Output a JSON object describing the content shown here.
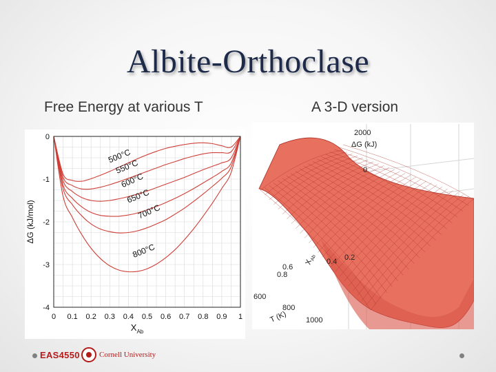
{
  "slide": {
    "title": "Albite-Orthoclase",
    "left_caption": "Free Energy at various T",
    "right_caption": "A 3-D version"
  },
  "footer": {
    "course_code": "EAS4550",
    "institution": "Cornell University"
  },
  "colors": {
    "curve": "#cf3f38",
    "surface_fill": "#e8705f",
    "surface_line": "#a92e25",
    "title": "#1d2a4a",
    "brand": "#b31b1b"
  },
  "chart_data": [
    {
      "type": "line",
      "ylabel": "ΔG (kJ/mol)",
      "xlabel": "X",
      "xlabel_subscript": "Ab",
      "xlim": [
        0,
        1
      ],
      "ylim": [
        -4,
        0
      ],
      "x_ticks": [
        "0",
        "0.1",
        "0.2",
        "0.3",
        "0.4",
        "0.5",
        "0.6",
        "0.7",
        "0.8",
        "0.9",
        "1"
      ],
      "y_ticks": [
        "0",
        "-1",
        "-2",
        "-3",
        "-4"
      ],
      "grid": true,
      "x": [
        0,
        0.05,
        0.1,
        0.15,
        0.2,
        0.25,
        0.3,
        0.35,
        0.4,
        0.45,
        0.5,
        0.55,
        0.6,
        0.65,
        0.7,
        0.75,
        0.8,
        0.85,
        0.9,
        0.95,
        1
      ],
      "series": [
        {
          "name": "500°C",
          "values": [
            0,
            -0.88,
            -1.03,
            -1.05,
            -0.99,
            -0.91,
            -0.82,
            -0.72,
            -0.62,
            -0.52,
            -0.43,
            -0.35,
            -0.28,
            -0.23,
            -0.19,
            -0.16,
            -0.15,
            -0.17,
            -0.22,
            -0.25,
            0
          ]
        },
        {
          "name": "550°C",
          "values": [
            0,
            -0.95,
            -1.15,
            -1.23,
            -1.23,
            -1.19,
            -1.13,
            -1.06,
            -0.98,
            -0.9,
            -0.82,
            -0.74,
            -0.66,
            -0.59,
            -0.52,
            -0.46,
            -0.41,
            -0.38,
            -0.38,
            -0.36,
            0
          ]
        },
        {
          "name": "600°C",
          "values": [
            0,
            -1.03,
            -1.29,
            -1.43,
            -1.5,
            -1.52,
            -1.5,
            -1.46,
            -1.41,
            -1.35,
            -1.28,
            -1.2,
            -1.12,
            -1.04,
            -0.96,
            -0.87,
            -0.78,
            -0.7,
            -0.62,
            -0.51,
            0
          ]
        },
        {
          "name": "650°C",
          "values": [
            0,
            -1.13,
            -1.45,
            -1.65,
            -1.78,
            -1.85,
            -1.87,
            -1.87,
            -1.84,
            -1.79,
            -1.72,
            -1.64,
            -1.55,
            -1.45,
            -1.34,
            -1.22,
            -1.09,
            -0.96,
            -0.82,
            -0.63,
            0
          ]
        },
        {
          "name": "700°C",
          "values": [
            0,
            -1.22,
            -1.6,
            -1.86,
            -2.05,
            -2.17,
            -2.23,
            -2.26,
            -2.25,
            -2.21,
            -2.14,
            -2.05,
            -1.95,
            -1.82,
            -1.68,
            -1.52,
            -1.35,
            -1.17,
            -0.98,
            -0.72,
            0
          ]
        },
        {
          "name": "800°C",
          "values": [
            0,
            -1.4,
            -1.9,
            -2.3,
            -2.62,
            -2.86,
            -3.03,
            -3.13,
            -3.17,
            -3.16,
            -3.1,
            -2.99,
            -2.84,
            -2.65,
            -2.42,
            -2.16,
            -1.87,
            -1.56,
            -1.22,
            -0.85,
            0
          ]
        }
      ],
      "annotations": [
        "500°C",
        "550°C",
        "600°C",
        "650°C",
        "700°C",
        "800°C"
      ]
    },
    {
      "type": "surface",
      "z_axis_label": "ΔG (kJ)",
      "z_tick_labels": [
        "2000",
        "0"
      ],
      "x_axis_label": "X",
      "x_axis_subscript": "Ab",
      "x_tick_labels": [
        "0.8",
        "0.6",
        "0.4",
        "0.2"
      ],
      "t_axis_label": "T (K)",
      "t_tick_labels": [
        "600",
        "800",
        "1000"
      ]
    }
  ]
}
